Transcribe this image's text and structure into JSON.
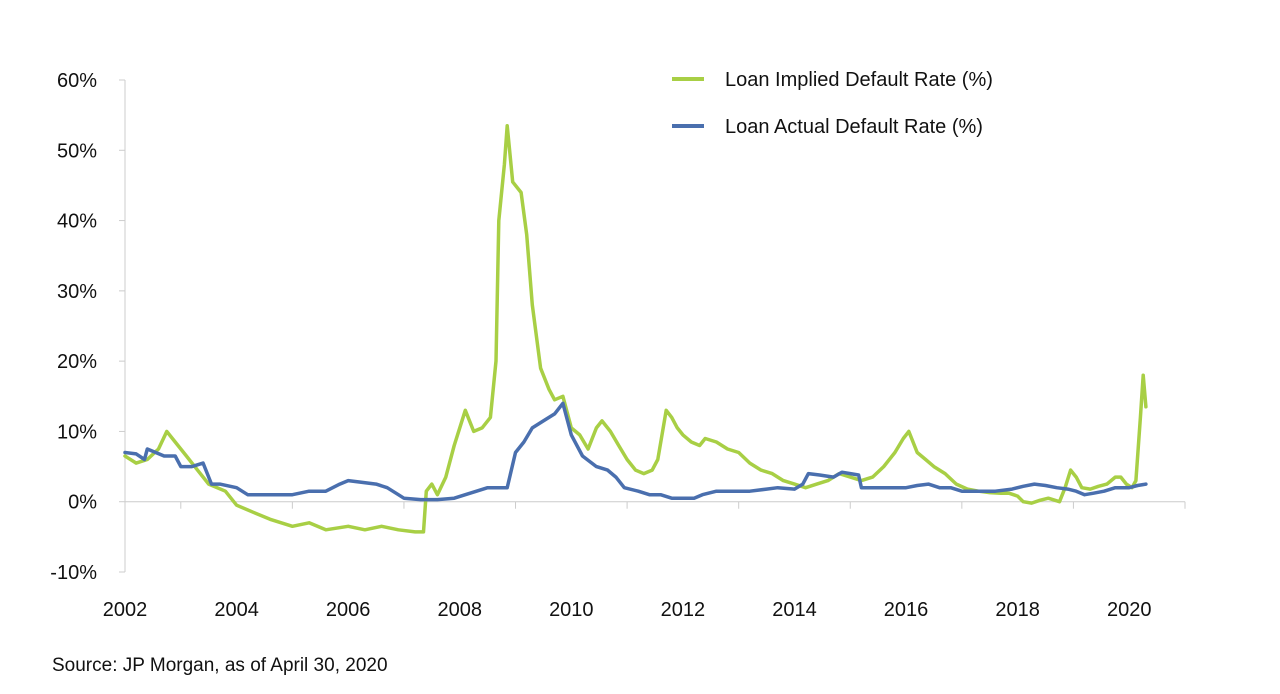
{
  "colors": {
    "implied": "#a8cf45",
    "actual": "#4a6fae",
    "axis": "#cccccc"
  },
  "source": "Source: JP Morgan, as of April 30, 2020",
  "chart_data": {
    "type": "line",
    "xlim": [
      2002,
      2021
    ],
    "ylim": [
      -10,
      60
    ],
    "xticks": [
      2002,
      2004,
      2006,
      2008,
      2010,
      2012,
      2014,
      2016,
      2018,
      2020
    ],
    "xtick_labels": [
      "2002",
      "2004",
      "2006",
      "2008",
      "2010",
      "2012",
      "2014",
      "2016",
      "2018",
      "2020"
    ],
    "yticks": [
      -10,
      0,
      10,
      20,
      30,
      40,
      50,
      60
    ],
    "ytick_labels": [
      "-10%",
      "0%",
      "10%",
      "20%",
      "30%",
      "40%",
      "50%",
      "60%"
    ],
    "grid": false,
    "legend_position": "top-right",
    "series": [
      {
        "name": "Loan Implied Default Rate (%)",
        "points": [
          [
            2002.0,
            6.5
          ],
          [
            2002.2,
            5.5
          ],
          [
            2002.4,
            6.0
          ],
          [
            2002.6,
            7.5
          ],
          [
            2002.75,
            10.0
          ],
          [
            2002.9,
            8.5
          ],
          [
            2003.1,
            6.5
          ],
          [
            2003.3,
            4.5
          ],
          [
            2003.5,
            2.5
          ],
          [
            2003.8,
            1.5
          ],
          [
            2004.0,
            -0.5
          ],
          [
            2004.3,
            -1.5
          ],
          [
            2004.6,
            -2.5
          ],
          [
            2005.0,
            -3.5
          ],
          [
            2005.3,
            -3.0
          ],
          [
            2005.6,
            -4.0
          ],
          [
            2006.0,
            -3.5
          ],
          [
            2006.3,
            -4.0
          ],
          [
            2006.6,
            -3.5
          ],
          [
            2006.9,
            -4.0
          ],
          [
            2007.2,
            -4.3
          ],
          [
            2007.35,
            -4.3
          ],
          [
            2007.4,
            1.5
          ],
          [
            2007.5,
            2.5
          ],
          [
            2007.6,
            1.0
          ],
          [
            2007.75,
            3.5
          ],
          [
            2007.9,
            8.0
          ],
          [
            2008.1,
            13.0
          ],
          [
            2008.25,
            10.0
          ],
          [
            2008.4,
            10.5
          ],
          [
            2008.55,
            12.0
          ],
          [
            2008.65,
            20.0
          ],
          [
            2008.7,
            40.0
          ],
          [
            2008.8,
            48.0
          ],
          [
            2008.85,
            53.5
          ],
          [
            2008.95,
            45.5
          ],
          [
            2009.1,
            44.0
          ],
          [
            2009.2,
            38.0
          ],
          [
            2009.3,
            28.0
          ],
          [
            2009.45,
            19.0
          ],
          [
            2009.6,
            16.0
          ],
          [
            2009.7,
            14.5
          ],
          [
            2009.85,
            15.0
          ],
          [
            2010.0,
            10.5
          ],
          [
            2010.15,
            9.5
          ],
          [
            2010.3,
            7.5
          ],
          [
            2010.45,
            10.5
          ],
          [
            2010.55,
            11.5
          ],
          [
            2010.7,
            10.0
          ],
          [
            2010.85,
            8.0
          ],
          [
            2011.0,
            6.0
          ],
          [
            2011.15,
            4.5
          ],
          [
            2011.3,
            4.0
          ],
          [
            2011.45,
            4.5
          ],
          [
            2011.55,
            6.0
          ],
          [
            2011.7,
            13.0
          ],
          [
            2011.8,
            12.0
          ],
          [
            2011.9,
            10.5
          ],
          [
            2012.0,
            9.5
          ],
          [
            2012.15,
            8.5
          ],
          [
            2012.3,
            8.0
          ],
          [
            2012.4,
            9.0
          ],
          [
            2012.6,
            8.5
          ],
          [
            2012.8,
            7.5
          ],
          [
            2013.0,
            7.0
          ],
          [
            2013.2,
            5.5
          ],
          [
            2013.4,
            4.5
          ],
          [
            2013.6,
            4.0
          ],
          [
            2013.8,
            3.0
          ],
          [
            2014.0,
            2.5
          ],
          [
            2014.2,
            2.0
          ],
          [
            2014.4,
            2.5
          ],
          [
            2014.6,
            3.0
          ],
          [
            2014.8,
            4.0
          ],
          [
            2015.0,
            3.5
          ],
          [
            2015.2,
            3.0
          ],
          [
            2015.4,
            3.5
          ],
          [
            2015.6,
            5.0
          ],
          [
            2015.8,
            7.0
          ],
          [
            2015.95,
            9.0
          ],
          [
            2016.05,
            10.0
          ],
          [
            2016.2,
            7.0
          ],
          [
            2016.35,
            6.0
          ],
          [
            2016.5,
            5.0
          ],
          [
            2016.7,
            4.0
          ],
          [
            2016.9,
            2.5
          ],
          [
            2017.1,
            1.8
          ],
          [
            2017.3,
            1.5
          ],
          [
            2017.5,
            1.3
          ],
          [
            2017.7,
            1.2
          ],
          [
            2017.85,
            1.2
          ],
          [
            2018.0,
            0.8
          ],
          [
            2018.1,
            0.0
          ],
          [
            2018.25,
            -0.2
          ],
          [
            2018.4,
            0.2
          ],
          [
            2018.55,
            0.5
          ],
          [
            2018.75,
            0.0
          ],
          [
            2018.85,
            2.0
          ],
          [
            2018.95,
            4.5
          ],
          [
            2019.05,
            3.5
          ],
          [
            2019.15,
            2.0
          ],
          [
            2019.3,
            1.8
          ],
          [
            2019.45,
            2.2
          ],
          [
            2019.6,
            2.5
          ],
          [
            2019.75,
            3.5
          ],
          [
            2019.85,
            3.5
          ],
          [
            2019.95,
            2.5
          ],
          [
            2020.05,
            2.0
          ],
          [
            2020.12,
            3.0
          ],
          [
            2020.2,
            12.0
          ],
          [
            2020.25,
            18.0
          ],
          [
            2020.3,
            13.5
          ]
        ]
      },
      {
        "name": "Loan Actual Default Rate (%)",
        "points": [
          [
            2002.0,
            7.0
          ],
          [
            2002.2,
            6.8
          ],
          [
            2002.35,
            6.0
          ],
          [
            2002.4,
            7.5
          ],
          [
            2002.55,
            7.0
          ],
          [
            2002.7,
            6.5
          ],
          [
            2002.9,
            6.5
          ],
          [
            2003.0,
            5.0
          ],
          [
            2003.2,
            5.0
          ],
          [
            2003.4,
            5.5
          ],
          [
            2003.55,
            2.5
          ],
          [
            2003.7,
            2.5
          ],
          [
            2004.0,
            2.0
          ],
          [
            2004.2,
            1.0
          ],
          [
            2004.4,
            1.0
          ],
          [
            2004.7,
            1.0
          ],
          [
            2005.0,
            1.0
          ],
          [
            2005.3,
            1.5
          ],
          [
            2005.6,
            1.5
          ],
          [
            2005.85,
            2.5
          ],
          [
            2006.0,
            3.0
          ],
          [
            2006.2,
            2.8
          ],
          [
            2006.5,
            2.5
          ],
          [
            2006.7,
            2.0
          ],
          [
            2006.9,
            1.0
          ],
          [
            2007.0,
            0.5
          ],
          [
            2007.3,
            0.3
          ],
          [
            2007.6,
            0.3
          ],
          [
            2007.9,
            0.5
          ],
          [
            2008.1,
            1.0
          ],
          [
            2008.3,
            1.5
          ],
          [
            2008.5,
            2.0
          ],
          [
            2008.85,
            2.0
          ],
          [
            2009.0,
            7.0
          ],
          [
            2009.15,
            8.5
          ],
          [
            2009.3,
            10.5
          ],
          [
            2009.5,
            11.5
          ],
          [
            2009.7,
            12.5
          ],
          [
            2009.85,
            14.0
          ],
          [
            2010.0,
            9.5
          ],
          [
            2010.2,
            6.5
          ],
          [
            2010.45,
            5.0
          ],
          [
            2010.65,
            4.5
          ],
          [
            2010.8,
            3.5
          ],
          [
            2010.95,
            2.0
          ],
          [
            2011.2,
            1.5
          ],
          [
            2011.4,
            1.0
          ],
          [
            2011.6,
            1.0
          ],
          [
            2011.8,
            0.5
          ],
          [
            2012.0,
            0.5
          ],
          [
            2012.2,
            0.5
          ],
          [
            2012.35,
            1.0
          ],
          [
            2012.6,
            1.5
          ],
          [
            2012.9,
            1.5
          ],
          [
            2013.2,
            1.5
          ],
          [
            2013.5,
            1.8
          ],
          [
            2013.7,
            2.0
          ],
          [
            2014.0,
            1.8
          ],
          [
            2014.15,
            2.5
          ],
          [
            2014.25,
            4.0
          ],
          [
            2014.45,
            3.8
          ],
          [
            2014.7,
            3.5
          ],
          [
            2014.85,
            4.2
          ],
          [
            2015.0,
            4.0
          ],
          [
            2015.15,
            3.8
          ],
          [
            2015.2,
            2.0
          ],
          [
            2015.5,
            2.0
          ],
          [
            2015.8,
            2.0
          ],
          [
            2016.0,
            2.0
          ],
          [
            2016.2,
            2.3
          ],
          [
            2016.4,
            2.5
          ],
          [
            2016.6,
            2.0
          ],
          [
            2016.8,
            2.0
          ],
          [
            2017.0,
            1.5
          ],
          [
            2017.3,
            1.5
          ],
          [
            2017.6,
            1.5
          ],
          [
            2017.9,
            1.8
          ],
          [
            2018.1,
            2.2
          ],
          [
            2018.3,
            2.5
          ],
          [
            2018.5,
            2.3
          ],
          [
            2018.7,
            2.0
          ],
          [
            2018.9,
            1.8
          ],
          [
            2019.05,
            1.5
          ],
          [
            2019.2,
            1.0
          ],
          [
            2019.35,
            1.2
          ],
          [
            2019.55,
            1.5
          ],
          [
            2019.75,
            2.0
          ],
          [
            2020.0,
            2.0
          ],
          [
            2020.15,
            2.3
          ],
          [
            2020.3,
            2.5
          ]
        ]
      }
    ]
  }
}
